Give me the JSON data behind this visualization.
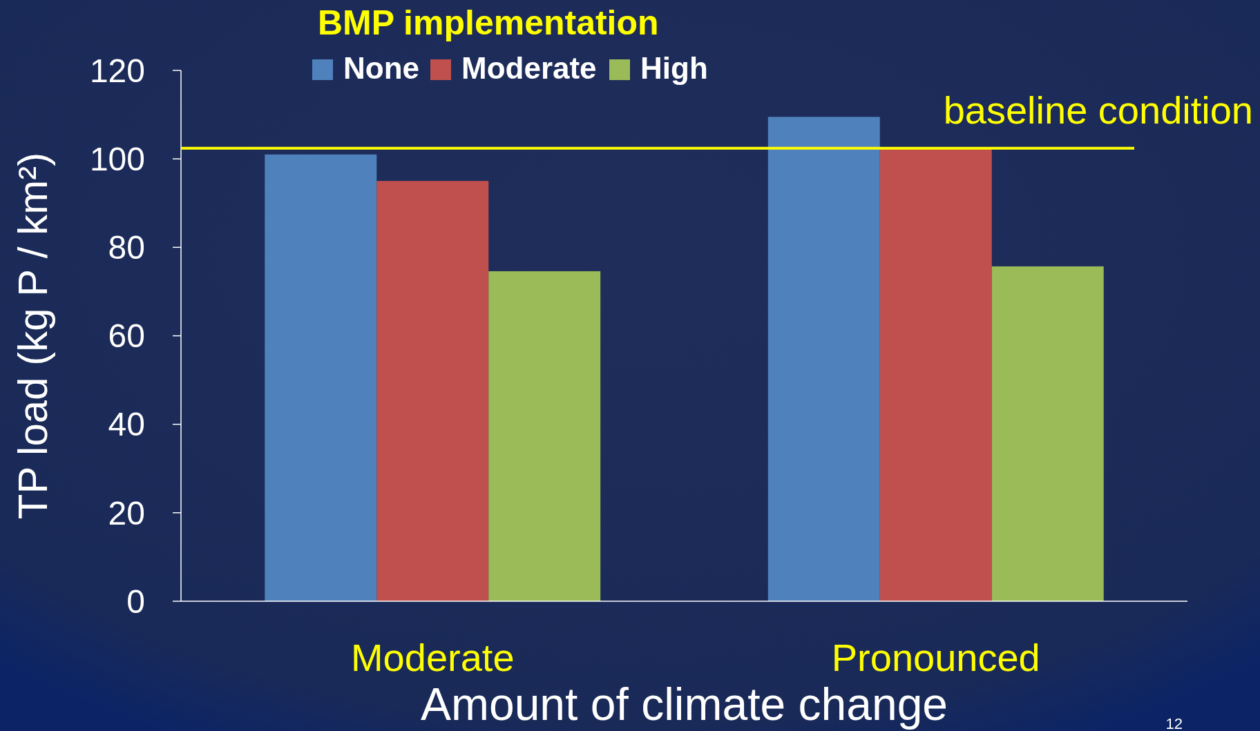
{
  "chart_data": {
    "type": "bar",
    "legend_title": "BMP implementation",
    "xlabel": "Amount of climate change",
    "ylabel": "TP load (kg P / km²)",
    "categories": [
      "Moderate",
      "Pronounced"
    ],
    "series": [
      {
        "name": "None",
        "color": "#4f81bd",
        "values": [
          101,
          109.5
        ]
      },
      {
        "name": "Moderate",
        "color": "#c0504d",
        "values": [
          95,
          102.4
        ]
      },
      {
        "name": "High",
        "color": "#9bbb59",
        "values": [
          74.6,
          75.7
        ]
      }
    ],
    "ylim": [
      0,
      120
    ],
    "yticks": [
      0,
      20,
      40,
      60,
      80,
      100,
      120
    ],
    "grid": false,
    "legend": "top",
    "ref_lines": [
      {
        "axis": "y",
        "value": 102.4,
        "label": "baseline condition",
        "color": "#ffff00"
      }
    ],
    "annotations": [
      "12"
    ]
  }
}
